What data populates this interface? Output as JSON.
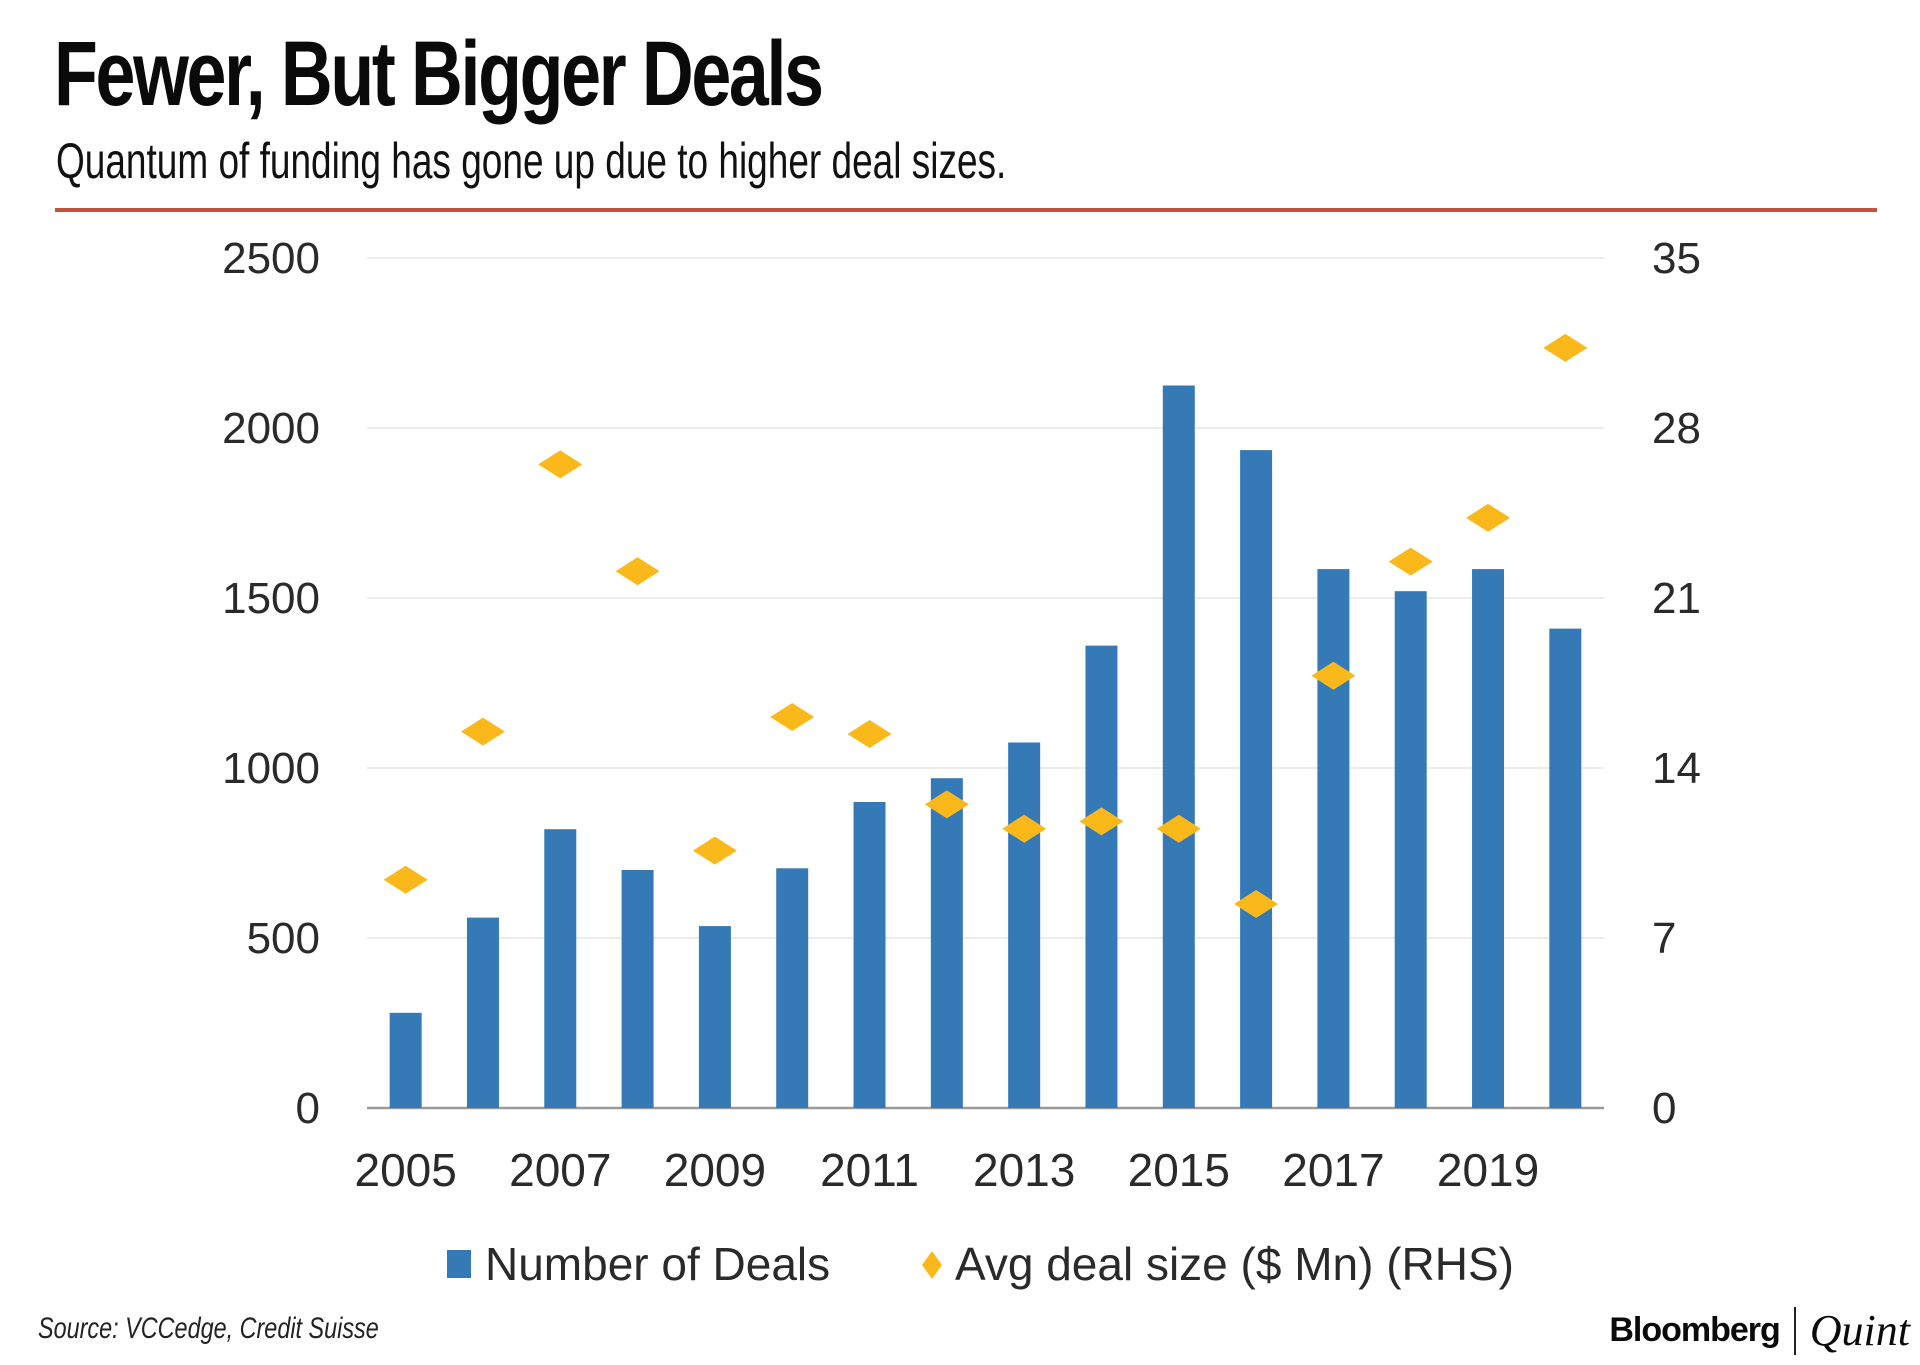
{
  "header": {
    "title": "Fewer, But Bigger Deals",
    "subtitle": "Quantum of funding has gone up due to higher deal sizes."
  },
  "footer": {
    "source": "Source: VCCedge, Credit Suisse",
    "brand_primary": "Bloomberg",
    "brand_secondary": "Quint"
  },
  "colors": {
    "bars": "#357ab7",
    "diamonds": "#fbb81b",
    "rule": "#c0533a",
    "grid": "#ececec"
  },
  "chart_data": {
    "type": "bar",
    "title": "Fewer, But Bigger Deals",
    "subtitle": "Quantum of funding has gone up due to higher deal sizes.",
    "xlabel": "",
    "ylabel": "",
    "x": [
      2005,
      2006,
      2007,
      2008,
      2009,
      2010,
      2011,
      2012,
      2013,
      2014,
      2015,
      2016,
      2017,
      2018,
      2019,
      2020
    ],
    "x_tick_labels": [
      "2005",
      "2007",
      "2009",
      "2011",
      "2013",
      "2015",
      "2017",
      "2019"
    ],
    "series": [
      {
        "name": "Number of Deals",
        "type": "bar",
        "axis": "left",
        "values": [
          280,
          560,
          820,
          700,
          535,
          705,
          900,
          970,
          1075,
          1360,
          2125,
          1935,
          1585,
          1520,
          1585,
          1410
        ]
      },
      {
        "name": "Avg deal size ($ Mn) (RHS)",
        "type": "scatter",
        "marker": "diamond",
        "axis": "right",
        "values": [
          9.4,
          15.5,
          26.5,
          22.1,
          10.6,
          16.1,
          15.4,
          12.5,
          11.5,
          11.8,
          11.5,
          8.4,
          17.8,
          22.5,
          24.3,
          31.3
        ]
      }
    ],
    "ylim": [
      0,
      2500
    ],
    "y_ticks": [
      "0",
      "500",
      "1000",
      "1500",
      "2000",
      "2500"
    ],
    "y2lim": [
      0,
      35
    ],
    "y2_ticks": [
      "0",
      "7",
      "14",
      "21",
      "28",
      "35"
    ],
    "grid": true,
    "legend_position": "bottom"
  }
}
